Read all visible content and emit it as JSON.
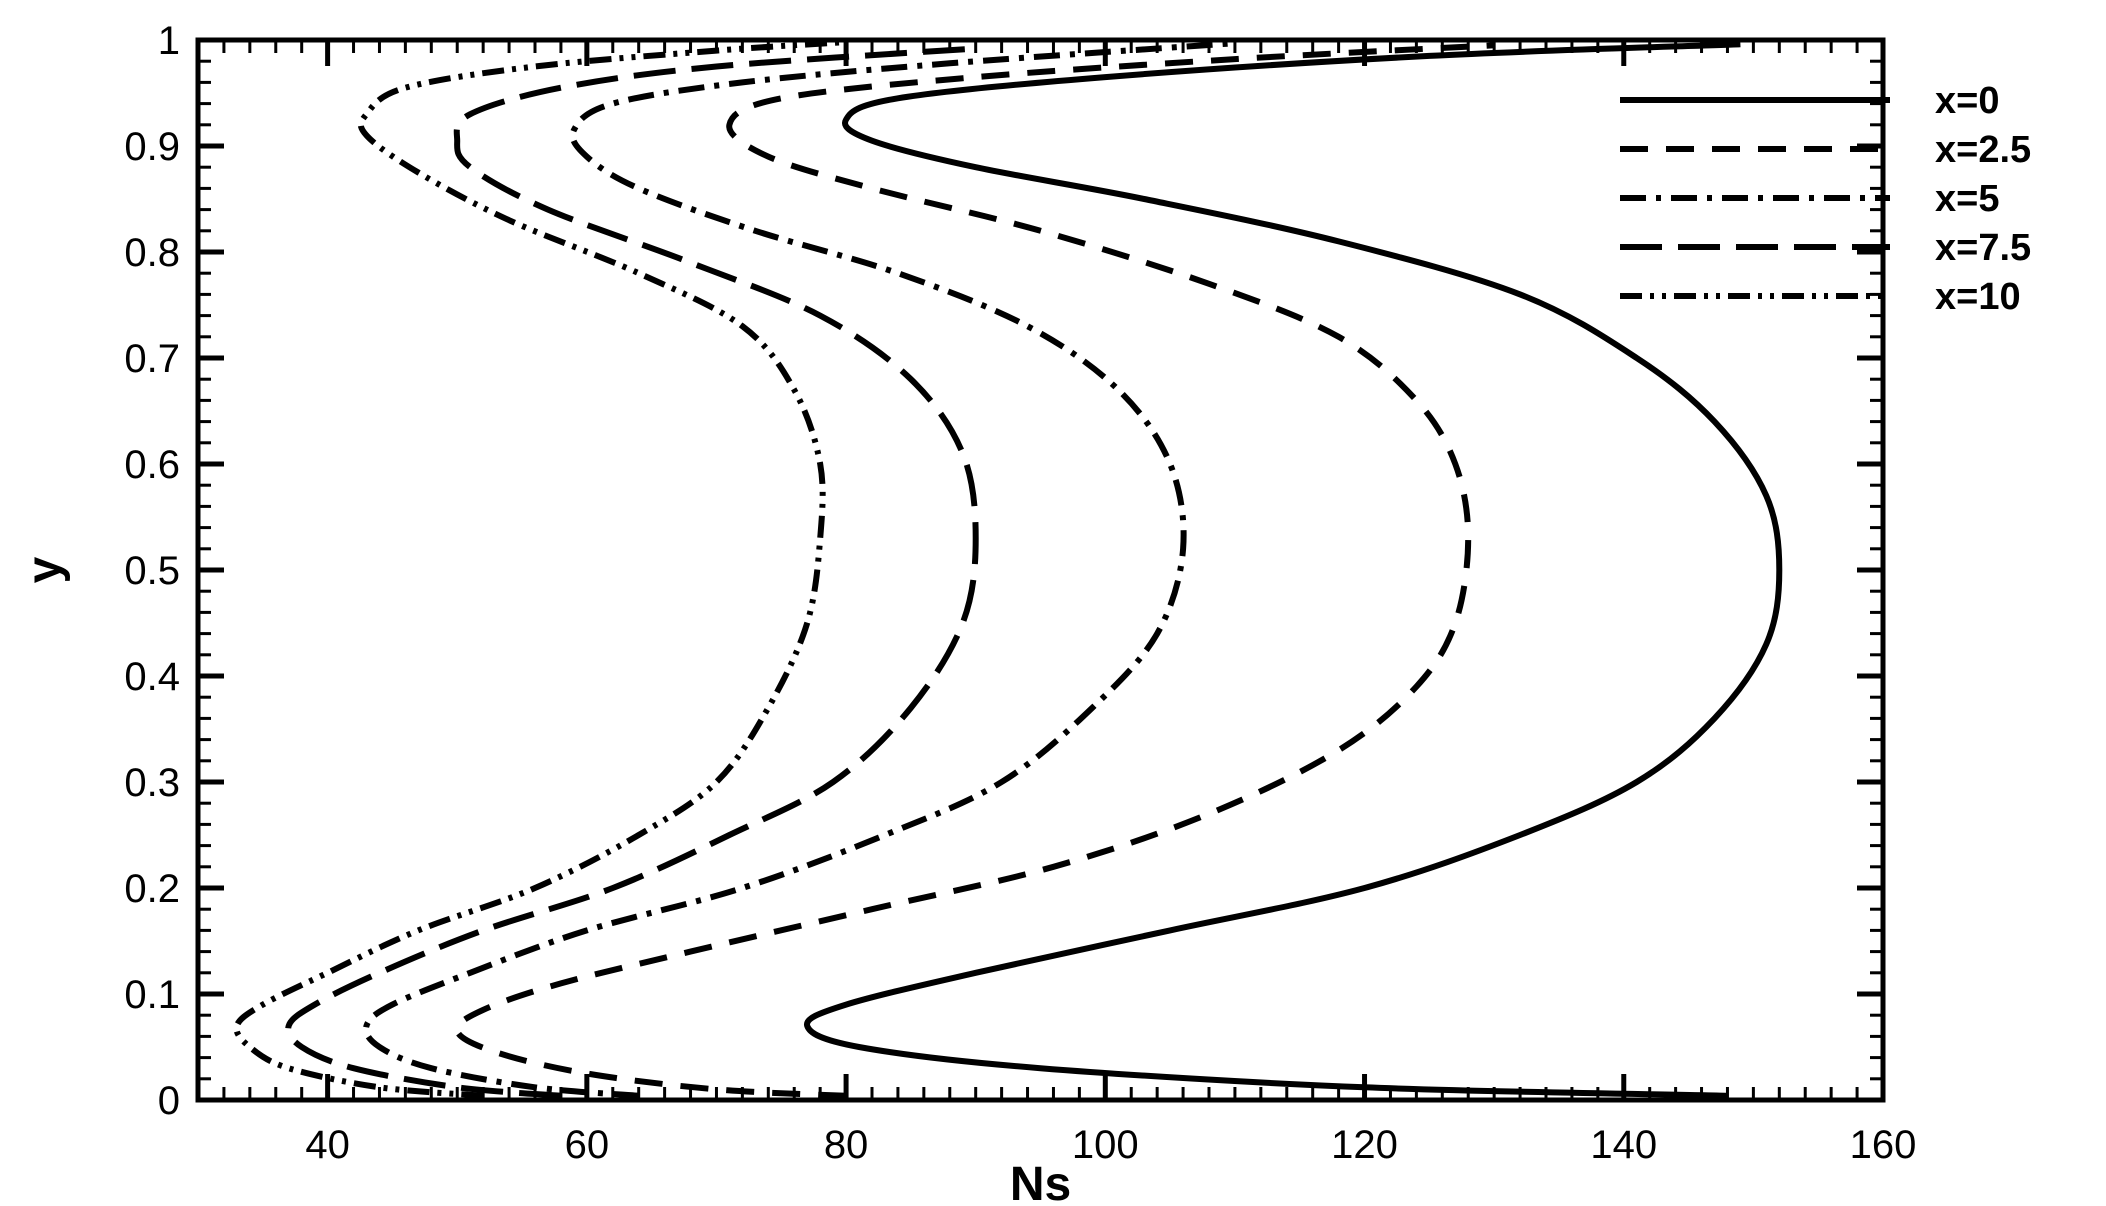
{
  "chart_data": {
    "type": "line",
    "xlabel": "Ns",
    "ylabel": "y",
    "xlim": [
      30,
      160
    ],
    "ylim": [
      0,
      1
    ],
    "x_ticks": [
      40,
      60,
      80,
      100,
      120,
      140,
      160
    ],
    "y_ticks": [
      0,
      0.1,
      0.2,
      0.3,
      0.4,
      0.5,
      0.6,
      0.7,
      0.8,
      0.9,
      1
    ],
    "x_tick_labels": [
      "40",
      "60",
      "80",
      "100",
      "120",
      "140",
      "160"
    ],
    "y_tick_labels": [
      "0",
      "0.1",
      "0.2",
      "0.3",
      "0.4",
      "0.5",
      "0.6",
      "0.7",
      "0.8",
      "0.9",
      "1"
    ],
    "grid": false,
    "legend_position": "top-right",
    "series": [
      {
        "name": "x=0",
        "dash": "solid",
        "points": [
          [
            148,
            0.004
          ],
          [
            120,
            0.012
          ],
          [
            95,
            0.03
          ],
          [
            81,
            0.05
          ],
          [
            77,
            0.07
          ],
          [
            80,
            0.09
          ],
          [
            90,
            0.12
          ],
          [
            105,
            0.16
          ],
          [
            120,
            0.2
          ],
          [
            132,
            0.25
          ],
          [
            141,
            0.3
          ],
          [
            147,
            0.36
          ],
          [
            151,
            0.43
          ],
          [
            152,
            0.5
          ],
          [
            151,
            0.57
          ],
          [
            147,
            0.64
          ],
          [
            141,
            0.7
          ],
          [
            132,
            0.76
          ],
          [
            118,
            0.81
          ],
          [
            103,
            0.85
          ],
          [
            90,
            0.88
          ],
          [
            82,
            0.905
          ],
          [
            80,
            0.925
          ],
          [
            84,
            0.945
          ],
          [
            100,
            0.965
          ],
          [
            125,
            0.985
          ],
          [
            149,
            0.996
          ]
        ]
      },
      {
        "name": "x=2.5",
        "dash": "long-dash",
        "points": [
          [
            80,
            0.004
          ],
          [
            70,
            0.01
          ],
          [
            60,
            0.025
          ],
          [
            53,
            0.045
          ],
          [
            50,
            0.065
          ],
          [
            52,
            0.085
          ],
          [
            58,
            0.11
          ],
          [
            68,
            0.14
          ],
          [
            82,
            0.18
          ],
          [
            96,
            0.22
          ],
          [
            108,
            0.27
          ],
          [
            118,
            0.33
          ],
          [
            124,
            0.39
          ],
          [
            127,
            0.45
          ],
          [
            128,
            0.53
          ],
          [
            127,
            0.6
          ],
          [
            124,
            0.66
          ],
          [
            118,
            0.72
          ],
          [
            108,
            0.77
          ],
          [
            95,
            0.82
          ],
          [
            82,
            0.86
          ],
          [
            74,
            0.89
          ],
          [
            71,
            0.92
          ],
          [
            75,
            0.945
          ],
          [
            90,
            0.965
          ],
          [
            110,
            0.982
          ],
          [
            130,
            0.995
          ]
        ]
      },
      {
        "name": "x=5",
        "dash": "dash-dot",
        "points": [
          [
            64,
            0.004
          ],
          [
            56,
            0.012
          ],
          [
            48,
            0.03
          ],
          [
            44,
            0.05
          ],
          [
            43,
            0.07
          ],
          [
            45,
            0.09
          ],
          [
            51,
            0.12
          ],
          [
            60,
            0.16
          ],
          [
            72,
            0.2
          ],
          [
            83,
            0.25
          ],
          [
            92,
            0.3
          ],
          [
            99,
            0.37
          ],
          [
            104,
            0.44
          ],
          [
            106,
            0.52
          ],
          [
            105,
            0.6
          ],
          [
            101,
            0.67
          ],
          [
            94,
            0.73
          ],
          [
            84,
            0.78
          ],
          [
            73,
            0.82
          ],
          [
            64,
            0.86
          ],
          [
            60,
            0.89
          ],
          [
            59,
            0.915
          ],
          [
            62,
            0.94
          ],
          [
            72,
            0.96
          ],
          [
            88,
            0.978
          ],
          [
            110,
            0.997
          ]
        ]
      },
      {
        "name": "x=7.5",
        "dash": "long-dash-gap",
        "points": [
          [
            58,
            0.004
          ],
          [
            50,
            0.012
          ],
          [
            42,
            0.03
          ],
          [
            38,
            0.05
          ],
          [
            37,
            0.07
          ],
          [
            39,
            0.09
          ],
          [
            44,
            0.12
          ],
          [
            52,
            0.16
          ],
          [
            62,
            0.2
          ],
          [
            71,
            0.25
          ],
          [
            79,
            0.3
          ],
          [
            85,
            0.37
          ],
          [
            89,
            0.45
          ],
          [
            90,
            0.53
          ],
          [
            89,
            0.61
          ],
          [
            85,
            0.68
          ],
          [
            78,
            0.74
          ],
          [
            68,
            0.79
          ],
          [
            57,
            0.84
          ],
          [
            51,
            0.88
          ],
          [
            50,
            0.905
          ],
          [
            51,
            0.93
          ],
          [
            58,
            0.955
          ],
          [
            70,
            0.975
          ],
          [
            90,
            0.992
          ]
        ]
      },
      {
        "name": "x=10",
        "dash": "dash-dot-dot",
        "points": [
          [
            52,
            0.004
          ],
          [
            44,
            0.012
          ],
          [
            37,
            0.03
          ],
          [
            34,
            0.05
          ],
          [
            33,
            0.07
          ],
          [
            35,
            0.09
          ],
          [
            40,
            0.12
          ],
          [
            47,
            0.16
          ],
          [
            56,
            0.2
          ],
          [
            64,
            0.25
          ],
          [
            70,
            0.3
          ],
          [
            74,
            0.37
          ],
          [
            77,
            0.45
          ],
          [
            78,
            0.53
          ],
          [
            78,
            0.6
          ],
          [
            76,
            0.67
          ],
          [
            72,
            0.73
          ],
          [
            64,
            0.78
          ],
          [
            54,
            0.83
          ],
          [
            47,
            0.875
          ],
          [
            43,
            0.91
          ],
          [
            43,
            0.93
          ],
          [
            46,
            0.955
          ],
          [
            56,
            0.975
          ],
          [
            70,
            0.99
          ],
          [
            80,
            0.998
          ]
        ]
      }
    ]
  }
}
